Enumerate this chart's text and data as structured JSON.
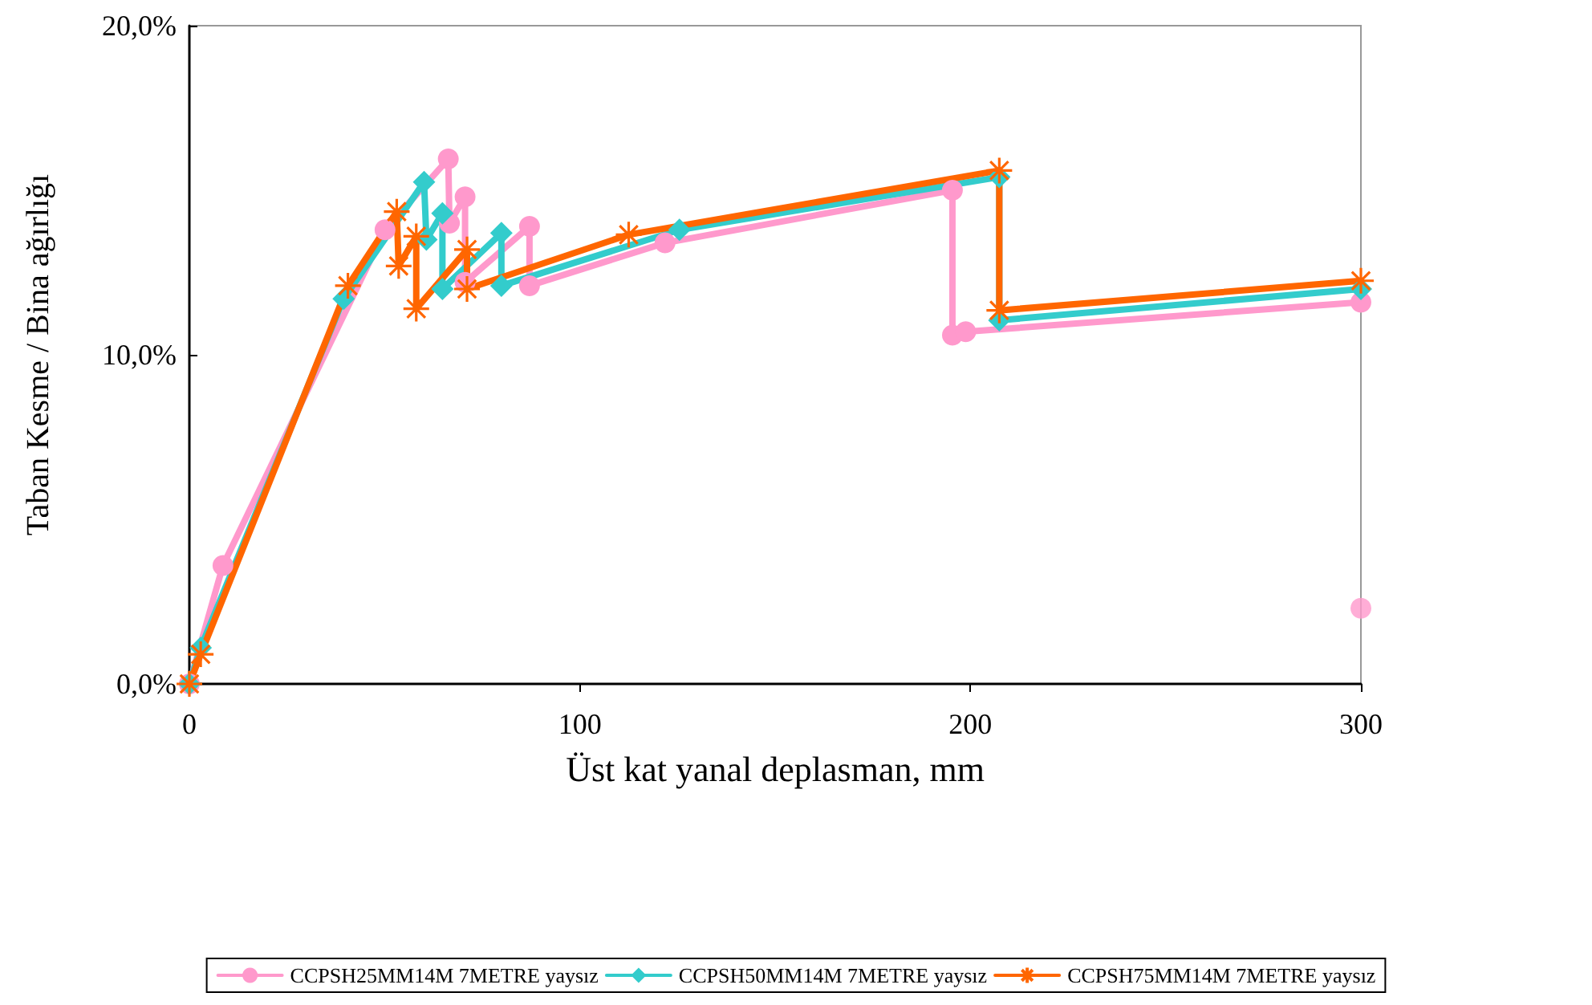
{
  "chart_data": {
    "type": "line",
    "xlabel": "Üst kat yanal deplasman, mm",
    "ylabel": "Taban Kesme / Bina ağırlığı",
    "xlim": [
      0,
      300
    ],
    "xticks": [
      0,
      100,
      200,
      300
    ],
    "ylim": [
      0,
      20
    ],
    "yticks": [
      {
        "value": 0,
        "label": "0,0%"
      },
      {
        "value": 10,
        "label": "10,0%"
      },
      {
        "value": 20,
        "label": "20,0%"
      }
    ],
    "grid": false,
    "legend": "bottom",
    "line_style": "solid",
    "series": [
      {
        "name": "CCPSH25MM14M 7METRE yaysız",
        "color": "#ff99cc",
        "marker": "circle",
        "x": [
          0,
          8.6,
          50.1,
          66.3,
          66.6,
          70.6,
          70.6,
          87.1,
          87.1,
          121.8,
          195.4,
          195.4,
          198.8,
          300
        ],
        "values": [
          0,
          3.6,
          13.8,
          15.95,
          14.0,
          14.8,
          12.2,
          13.9,
          12.1,
          13.4,
          15.0,
          10.6,
          10.7,
          11.6
        ]
      },
      {
        "type": "scatter",
        "color": "#ff99cc",
        "marker": "circle",
        "x": [
          300
        ],
        "values": [
          2.3
        ]
      },
      {
        "name": "CCPSH50MM14M 7METRE yaysız",
        "color": "#33cccc",
        "marker": "diamond",
        "x": [
          0,
          2.9,
          39.5,
          60.1,
          60.7,
          64.8,
          64.8,
          79.9,
          79.9,
          125.5,
          207.4,
          207.4,
          300
        ],
        "values": [
          0,
          1.1,
          11.7,
          15.25,
          13.5,
          14.3,
          12.0,
          13.7,
          12.1,
          13.8,
          15.4,
          11.05,
          12.0
        ]
      },
      {
        "name": "CCPSH75MM14M 7METRE yaysız",
        "color": "#ff6600",
        "marker": "cross",
        "x": [
          0,
          2.9,
          40.6,
          53.1,
          53.6,
          58.1,
          58.1,
          71.1,
          71.1,
          112.5,
          207.4,
          207.4,
          300
        ],
        "values": [
          0,
          0.9,
          12.1,
          14.35,
          12.7,
          13.6,
          11.4,
          13.2,
          12.0,
          13.65,
          15.6,
          11.35,
          12.25
        ]
      }
    ]
  }
}
